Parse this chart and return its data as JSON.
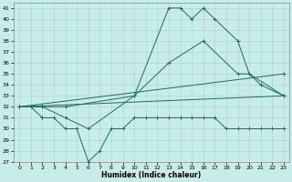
{
  "bg_color": "#c8ece8",
  "grid_color": "#a8d8d0",
  "line_color": "#1a6b60",
  "xlabel": "Humidex (Indice chaleur)",
  "xlim": [
    -0.5,
    23.5
  ],
  "ylim": [
    27,
    41.5
  ],
  "yticks": [
    27,
    28,
    29,
    30,
    31,
    32,
    33,
    34,
    35,
    36,
    37,
    38,
    39,
    40,
    41
  ],
  "xticks": [
    0,
    1,
    2,
    3,
    4,
    5,
    6,
    7,
    8,
    9,
    10,
    11,
    12,
    13,
    14,
    15,
    16,
    17,
    18,
    19,
    20,
    21,
    22,
    23
  ],
  "series": [
    {
      "x": [
        0,
        2,
        4,
        6,
        10,
        13,
        14,
        15,
        16,
        17,
        19,
        20,
        21,
        23
      ],
      "y": [
        32,
        32,
        31,
        30,
        33,
        41,
        41,
        40,
        41,
        40,
        38,
        35,
        34,
        33
      ]
    },
    {
      "x": [
        0,
        2,
        4,
        10,
        13,
        16,
        19,
        20,
        23
      ],
      "y": [
        32,
        32,
        32,
        33,
        36,
        38,
        35,
        35,
        33
      ]
    },
    {
      "x": [
        0,
        1,
        2,
        3,
        4,
        5,
        6,
        7,
        8,
        9,
        10,
        11,
        12,
        13,
        14,
        15,
        16,
        17,
        18,
        19,
        20,
        21,
        22,
        23
      ],
      "y": [
        32,
        32,
        31,
        31,
        30,
        30,
        27,
        28,
        30,
        30,
        31,
        31,
        31,
        31,
        31,
        31,
        31,
        31,
        30,
        30,
        30,
        30,
        30,
        30
      ]
    },
    {
      "x": [
        0,
        23
      ],
      "y": [
        32,
        35
      ]
    },
    {
      "x": [
        0,
        23
      ],
      "y": [
        32,
        33
      ]
    }
  ]
}
